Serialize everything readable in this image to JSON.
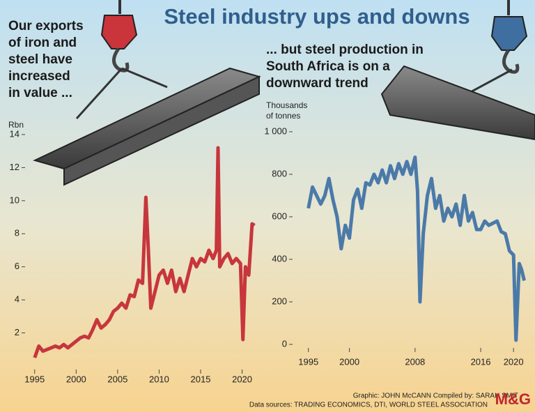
{
  "title": "Steel industry ups and downs",
  "credits": [
    "Graphic: JOHN McCANN  Compiled by: SARAH SMIT",
    "Data sources: TRADING ECONOMICS, DTI, WORLD STEEL ASSOCIATION"
  ],
  "logo": "M&G",
  "chart_data": [
    {
      "type": "line",
      "annotation": [
        "Our exports",
        "of iron and",
        "steel have",
        "increased",
        "in value ..."
      ],
      "y_label": "Rbn",
      "color": "#c7363c",
      "x": [
        1995,
        1995.5,
        1996,
        1996.5,
        1997,
        1997.5,
        1998,
        1998.5,
        1999,
        1999.5,
        2000,
        2000.5,
        2001,
        2001.5,
        2002,
        2002.5,
        2003,
        2003.5,
        2004,
        2004.5,
        2005,
        2005.5,
        2006,
        2006.5,
        2007,
        2007.5,
        2008,
        2008.4,
        2008.7,
        2009,
        2009.5,
        2010,
        2010.5,
        2011,
        2011.5,
        2012,
        2012.5,
        2013,
        2013.5,
        2014,
        2014.5,
        2015,
        2015.5,
        2016,
        2016.5,
        2016.9,
        2017.1,
        2017.3,
        2017.8,
        2018.3,
        2018.8,
        2019.3,
        2019.8,
        2020.1,
        2020.4,
        2020.8,
        2021.2,
        2021.5
      ],
      "values": [
        0.5,
        1.2,
        0.9,
        1.0,
        1.1,
        1.2,
        1.1,
        1.3,
        1.1,
        1.3,
        1.5,
        1.7,
        1.8,
        1.7,
        2.2,
        2.8,
        2.3,
        2.5,
        2.8,
        3.3,
        3.5,
        3.8,
        3.5,
        4.3,
        4.2,
        5.2,
        5.0,
        10.2,
        7.0,
        3.5,
        4.5,
        5.5,
        5.8,
        5.0,
        5.8,
        4.5,
        5.3,
        4.5,
        5.5,
        6.5,
        6.0,
        6.5,
        6.3,
        7.0,
        6.5,
        7.0,
        13.2,
        6.0,
        6.5,
        6.8,
        6.2,
        6.5,
        6.2,
        1.6,
        6.0,
        5.5,
        8.6,
        8.5
      ],
      "xlim": [
        1994.6,
        2021.8
      ],
      "xticks": [
        1995,
        2000,
        2005,
        2010,
        2015,
        2020
      ],
      "ylim": [
        0,
        14
      ],
      "yticks": [
        2,
        4,
        6,
        8,
        10,
        12,
        14
      ]
    },
    {
      "type": "line",
      "annotation": [
        "... but steel production in",
        "South Africa is on a",
        "downward trend"
      ],
      "y_label": [
        "Thousands",
        "of tonnes"
      ],
      "color": "#4b7aa9",
      "x": [
        1995,
        1995.5,
        1996,
        1996.5,
        1997,
        1997.5,
        1998,
        1998.5,
        1999,
        1999.5,
        2000,
        2000.5,
        2001,
        2001.5,
        2002,
        2002.5,
        2003,
        2003.5,
        2004,
        2004.5,
        2005,
        2005.5,
        2006,
        2006.5,
        2007,
        2007.5,
        2008,
        2008.3,
        2008.6,
        2009,
        2009.5,
        2010,
        2010.5,
        2011,
        2011.5,
        2012,
        2012.5,
        2013,
        2013.5,
        2014,
        2014.5,
        2015,
        2015.5,
        2016,
        2016.5,
        2017,
        2017.5,
        2018,
        2018.5,
        2019,
        2019.5,
        2020,
        2020.3,
        2020.7,
        2021,
        2021.3
      ],
      "values": [
        640,
        740,
        700,
        660,
        700,
        780,
        680,
        600,
        450,
        560,
        500,
        680,
        730,
        640,
        760,
        750,
        800,
        760,
        820,
        760,
        840,
        780,
        850,
        800,
        860,
        800,
        880,
        720,
        200,
        520,
        700,
        780,
        640,
        700,
        580,
        640,
        600,
        660,
        560,
        700,
        580,
        620,
        540,
        540,
        580,
        560,
        570,
        580,
        530,
        520,
        440,
        420,
        20,
        380,
        350,
        300
      ],
      "xlim": [
        1994.6,
        2021.6
      ],
      "xticks": [
        1995,
        2000,
        2008,
        2016,
        2020
      ],
      "ylim": [
        0,
        1000
      ],
      "yticks": [
        0,
        200,
        400,
        600,
        {
          "value": 1000,
          "label": "1 000"
        },
        800
      ]
    }
  ]
}
